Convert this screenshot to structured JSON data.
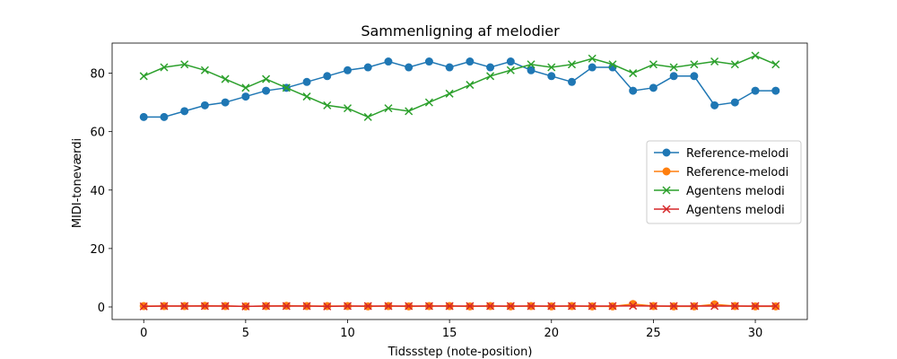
{
  "chart_data": {
    "type": "line",
    "title": "Sammenligning af melodier",
    "xlabel": "Tidssstep (note-position)",
    "ylabel": "MIDI-toneværdi",
    "xlim": [
      -1.55,
      32.55
    ],
    "ylim": [
      -4.3,
      90.3
    ],
    "xticks": [
      0,
      5,
      10,
      15,
      20,
      25,
      30
    ],
    "yticks": [
      0,
      20,
      40,
      60,
      80
    ],
    "x": [
      0,
      1,
      2,
      3,
      4,
      5,
      6,
      7,
      8,
      9,
      10,
      11,
      12,
      13,
      14,
      15,
      16,
      17,
      18,
      19,
      20,
      21,
      22,
      23,
      24,
      25,
      26,
      27,
      28,
      29,
      30,
      31
    ],
    "legend_position": "center-right",
    "grid": false,
    "series": [
      {
        "name": "Reference-melodi",
        "color": "#1f77b4",
        "marker": "circle",
        "values": [
          65,
          65,
          67,
          69,
          70,
          72,
          74,
          75,
          77,
          79,
          81,
          82,
          84,
          82,
          84,
          82,
          84,
          82,
          84,
          81,
          79,
          77,
          82,
          82,
          74,
          75,
          79,
          79,
          69,
          70,
          74,
          74
        ]
      },
      {
        "name": "Reference-melodi",
        "color": "#ff7f0e",
        "marker": "circle",
        "values": [
          0.3,
          0.3,
          0.3,
          0.4,
          0.3,
          0.2,
          0.3,
          0.4,
          0.3,
          0.3,
          0.3,
          0.2,
          0.3,
          0.2,
          0.3,
          0.3,
          0.2,
          0.3,
          0.2,
          0.3,
          0.2,
          0.3,
          0.2,
          0.2,
          1.0,
          0.3,
          0.2,
          0.2,
          0.9,
          0.3,
          0.2,
          0.2
        ]
      },
      {
        "name": "Agentens melodi",
        "color": "#2ca02c",
        "marker": "x",
        "values": [
          79,
          82,
          83,
          81,
          78,
          75,
          78,
          75,
          72,
          69,
          68,
          65,
          68,
          67,
          70,
          73,
          76,
          79,
          81,
          83,
          82,
          83,
          85,
          83,
          80,
          83,
          82,
          83,
          84,
          83,
          86,
          83
        ]
      },
      {
        "name": "Agentens melodi",
        "color": "#d62728",
        "marker": "x",
        "values": [
          0.2,
          0.3,
          0.3,
          0.3,
          0.3,
          0.2,
          0.3,
          0.3,
          0.3,
          0.2,
          0.3,
          0.3,
          0.3,
          0.3,
          0.3,
          0.3,
          0.3,
          0.3,
          0.3,
          0.3,
          0.3,
          0.3,
          0.3,
          0.3,
          0.4,
          0.3,
          0.3,
          0.3,
          0.3,
          0.3,
          0.3,
          0.3
        ]
      }
    ]
  }
}
